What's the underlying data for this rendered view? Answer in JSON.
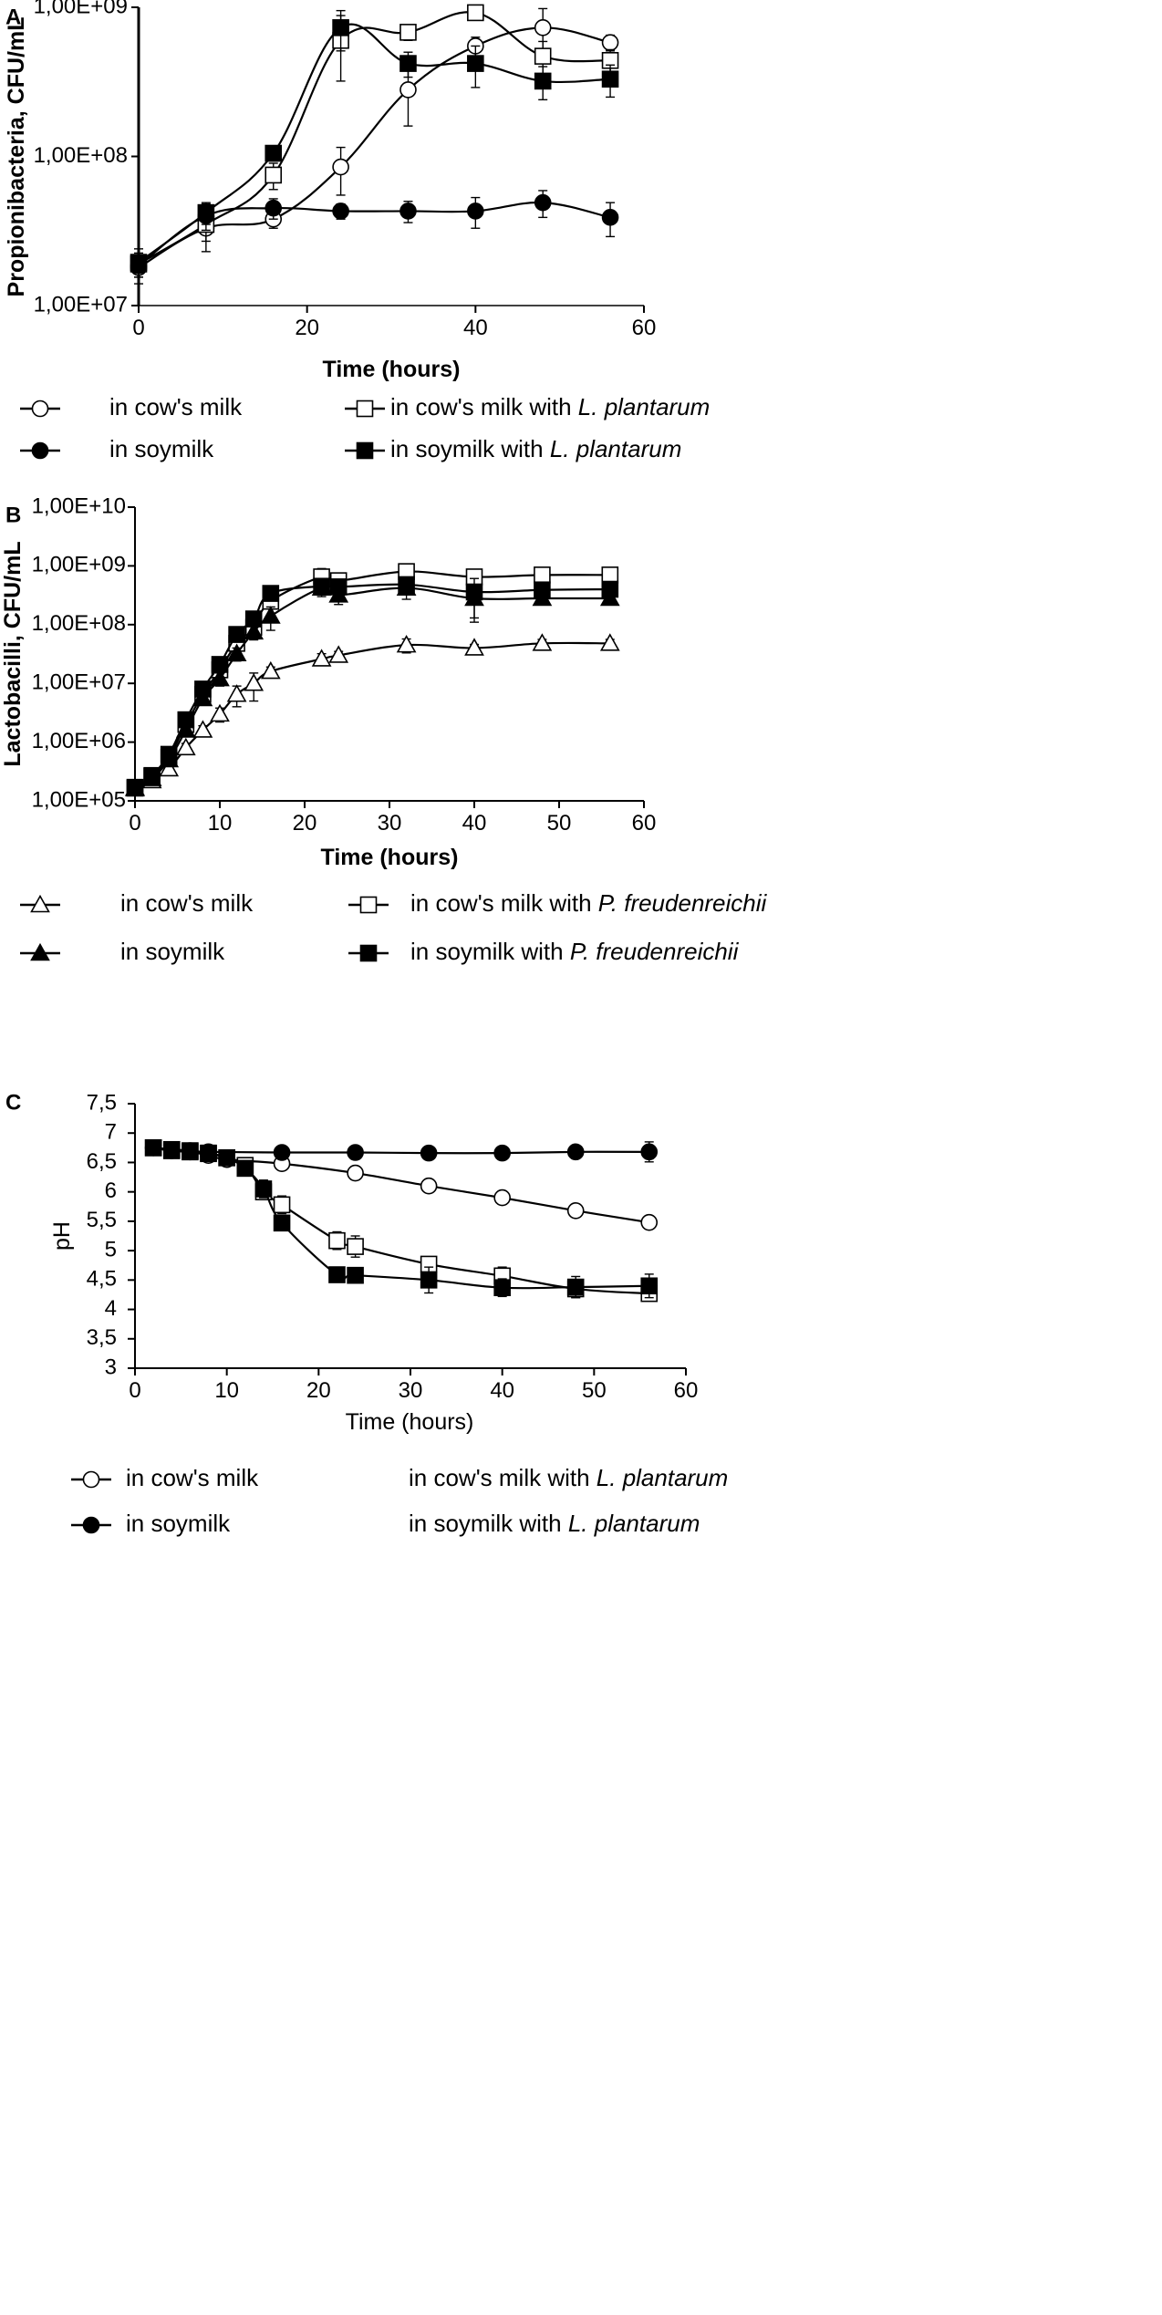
{
  "chart_data": [
    {
      "panel": "A",
      "type": "line",
      "yscale": "log",
      "xlabel": "Time (hours)",
      "ylabel": "Propionibacteria, CFU/mL",
      "xlim": [
        0,
        60
      ],
      "xticks": [
        "0",
        "20",
        "40",
        "60"
      ],
      "ylim": [
        10000000,
        1000000000
      ],
      "yticks": [
        "1,00E+07",
        "1,00E+08",
        "1,00E+09"
      ],
      "series": [
        {
          "name": "in cow's milk",
          "marker": "circle-open",
          "x": [
            0,
            8,
            16,
            24,
            32,
            40,
            48,
            56
          ],
          "y": [
            18000000,
            33000000,
            38000000,
            85000000,
            280000000,
            550000000,
            730000000,
            580000000
          ],
          "err": [
            2500000,
            6000000,
            5000000,
            30000000,
            120000000,
            80000000,
            250000000,
            70000000
          ]
        },
        {
          "name": "in cow's milk with L. plantarum",
          "marker": "square-open",
          "x": [
            0,
            8,
            16,
            24,
            32,
            40,
            48,
            56
          ],
          "y": [
            19000000,
            35000000,
            75000000,
            600000000,
            680000000,
            920000000,
            470000000,
            440000000
          ],
          "err": [
            5000000,
            12000000,
            15000000,
            280000000,
            80000000,
            80000000,
            120000000,
            80000000
          ]
        },
        {
          "name": "in soymilk",
          "marker": "circle-filled",
          "x": [
            0,
            8,
            16,
            24,
            32,
            40,
            48,
            56
          ],
          "y": [
            18500000,
            40000000,
            45000000,
            43000000,
            43000000,
            43000000,
            49000000,
            39000000
          ],
          "err": [
            3000000,
            8000000,
            7000000,
            5000000,
            7000000,
            10000000,
            10000000,
            10000000
          ]
        },
        {
          "name": "in soymilk with L. plantarum",
          "marker": "square-filled",
          "x": [
            0,
            8,
            16,
            24,
            32,
            40,
            48,
            56
          ],
          "y": [
            19500000,
            42000000,
            105000000,
            730000000,
            420000000,
            420000000,
            320000000,
            330000000
          ],
          "err": [
            3000000,
            7000000,
            12000000,
            220000000,
            80000000,
            130000000,
            80000000,
            80000000
          ]
        }
      ],
      "legend": [
        {
          "label": "in cow's milk",
          "marker": "circle-open"
        },
        {
          "label": "in cow's milk with ",
          "italic": "L. plantarum",
          "marker": "square-open"
        },
        {
          "label": "in soymilk",
          "marker": "circle-filled"
        },
        {
          "label": "in soymilk with ",
          "italic": "L. plantarum",
          "marker": "square-filled"
        }
      ]
    },
    {
      "panel": "B",
      "type": "line",
      "yscale": "log",
      "xlabel": "Time (hours)",
      "ylabel": "Lactobacilli, CFU/mL",
      "xlim": [
        0,
        60
      ],
      "xticks": [
        "0",
        "10",
        "20",
        "30",
        "40",
        "50",
        "60"
      ],
      "ylim": [
        100000,
        10000000000
      ],
      "yticks": [
        "1,00E+05",
        "1,00E+06",
        "1,00E+07",
        "1,00E+08",
        "1,00E+09",
        "1,00E+10"
      ],
      "series": [
        {
          "name": "in cow's milk",
          "marker": "triangle-open",
          "x": [
            0,
            2,
            4,
            6,
            8,
            10,
            12,
            14,
            16,
            22,
            24,
            32,
            40,
            48,
            56
          ],
          "y": [
            160000,
            220000,
            350000,
            800000,
            1600000,
            3000000,
            6500000,
            10000000,
            16000000,
            26000000,
            30000000,
            45000000,
            40000000,
            48000000,
            48000000
          ],
          "err": [
            20000,
            30000,
            50000,
            150000,
            300000,
            800000,
            2500000,
            5000000,
            3000000,
            6000000,
            5000000,
            12000000,
            6000000,
            8000000,
            8000000
          ]
        },
        {
          "name": "in cow's milk with P. freudenreichii",
          "marker": "square-open",
          "x": [
            0,
            2,
            4,
            6,
            8,
            10,
            12,
            14,
            16,
            22,
            24,
            32,
            40,
            48,
            56
          ],
          "y": [
            170000,
            260000,
            550000,
            2000000,
            6500000,
            17000000,
            48000000,
            90000000,
            250000000,
            650000000,
            560000000,
            800000000,
            650000000,
            700000000,
            700000000
          ],
          "err": [
            20000,
            30000,
            100000,
            400000,
            1500000,
            4000000,
            12000000,
            20000000,
            60000000,
            250000000,
            100000000,
            150000000,
            100000000,
            150000000,
            150000000
          ]
        },
        {
          "name": "in soymilk",
          "marker": "triangle-filled",
          "x": [
            0,
            2,
            4,
            6,
            8,
            10,
            12,
            14,
            16,
            22,
            24,
            32,
            40,
            48,
            56
          ],
          "y": [
            165000,
            240000,
            500000,
            1600000,
            5500000,
            12000000,
            32000000,
            75000000,
            140000000,
            420000000,
            320000000,
            420000000,
            280000000,
            280000000,
            280000000
          ],
          "err": [
            20000,
            30000,
            80000,
            300000,
            1200000,
            3000000,
            8000000,
            20000000,
            60000000,
            120000000,
            100000000,
            150000000,
            150000000,
            50000000,
            50000000
          ]
        },
        {
          "name": "in soymilk with P. freudenreichii",
          "marker": "square-filled",
          "x": [
            0,
            2,
            4,
            6,
            8,
            10,
            12,
            14,
            16,
            22,
            24,
            32,
            40,
            48,
            56
          ],
          "y": [
            165000,
            270000,
            620000,
            2400000,
            8000000,
            21000000,
            68000000,
            125000000,
            340000000,
            450000000,
            440000000,
            480000000,
            360000000,
            390000000,
            400000000
          ],
          "err": [
            20000,
            30000,
            100000,
            500000,
            1500000,
            4000000,
            15000000,
            25000000,
            60000000,
            100000000,
            80000000,
            100000000,
            250000000,
            80000000,
            80000000
          ]
        }
      ],
      "legend": [
        {
          "label": "in cow's milk",
          "marker": "triangle-open"
        },
        {
          "label": "in cow's milk with ",
          "italic": "P. freudenreichii",
          "marker": "square-open"
        },
        {
          "label": "in soymilk",
          "marker": "triangle-filled"
        },
        {
          "label": "in soymilk with ",
          "italic": "P. freudenreichii",
          "marker": "square-filled"
        }
      ]
    },
    {
      "panel": "C",
      "type": "line",
      "yscale": "linear",
      "xlabel": "Time (hours)",
      "ylabel": "pH",
      "xlim": [
        0,
        60
      ],
      "xticks": [
        "0",
        "10",
        "20",
        "30",
        "40",
        "50",
        "60"
      ],
      "ylim": [
        3,
        7.5
      ],
      "yticks": [
        "3",
        "3,5",
        "4",
        "4,5",
        "5",
        "5,5",
        "6",
        "6,5",
        "7",
        "7,5"
      ],
      "series": [
        {
          "name": "in cow's milk",
          "marker": "circle-open",
          "x": [
            2,
            4,
            6,
            8,
            10,
            16,
            24,
            32,
            40,
            48,
            56
          ],
          "y": [
            6.75,
            6.7,
            6.68,
            6.62,
            6.55,
            6.48,
            6.32,
            6.1,
            5.9,
            5.68,
            5.48
          ],
          "err": [
            0.04,
            0.04,
            0.04,
            0.05,
            0.05,
            0.07,
            0.06,
            0.07,
            0.08,
            0.06,
            0.06
          ]
        },
        {
          "name": "in cow's milk with L. plantarum",
          "marker": "square-open",
          "x": [
            2,
            4,
            6,
            8,
            10,
            12,
            14,
            16,
            22,
            24,
            32,
            40,
            48,
            56
          ],
          "y": [
            6.75,
            6.7,
            6.68,
            6.65,
            6.58,
            6.45,
            6.0,
            5.78,
            5.17,
            5.07,
            4.77,
            4.57,
            4.35,
            4.27
          ],
          "err": [
            0.04,
            0.04,
            0.04,
            0.05,
            0.05,
            0.08,
            0.12,
            0.15,
            0.15,
            0.18,
            0.1,
            0.15,
            0.15,
            0.08
          ]
        },
        {
          "name": "in soymilk",
          "marker": "circle-filled",
          "x": [
            2,
            4,
            6,
            8,
            16,
            24,
            32,
            40,
            48,
            56
          ],
          "y": [
            6.75,
            6.72,
            6.7,
            6.68,
            6.67,
            6.67,
            6.66,
            6.66,
            6.68,
            6.68
          ],
          "err": [
            0.04,
            0.04,
            0.04,
            0.05,
            0.06,
            0.06,
            0.06,
            0.08,
            0.1,
            0.17
          ]
        },
        {
          "name": "in soymilk with L. plantarum",
          "marker": "square-filled",
          "x": [
            2,
            4,
            6,
            8,
            10,
            12,
            14,
            16,
            22,
            24,
            32,
            40,
            48,
            56
          ],
          "y": [
            6.75,
            6.72,
            6.7,
            6.66,
            6.58,
            6.4,
            6.05,
            5.47,
            4.59,
            4.58,
            4.5,
            4.37,
            4.38,
            4.4
          ],
          "err": [
            0.04,
            0.04,
            0.04,
            0.05,
            0.05,
            0.08,
            0.15,
            0.12,
            0.05,
            0.1,
            0.22,
            0.15,
            0.18,
            0.2
          ]
        }
      ],
      "legend": [
        {
          "label": "in cow's milk",
          "marker": "circle-open"
        },
        {
          "label": "in cow's milk with ",
          "italic": "L. plantarum",
          "marker": "none"
        },
        {
          "label": "in soymilk",
          "marker": "circle-filled"
        },
        {
          "label": "in soymilk with ",
          "italic": "L. plantarum",
          "marker": "none"
        }
      ]
    }
  ]
}
